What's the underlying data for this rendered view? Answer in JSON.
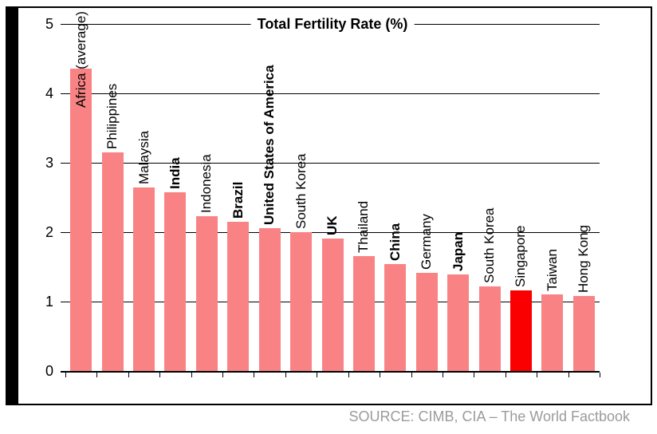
{
  "chart_data": {
    "type": "bar",
    "title": "Total Fertility Rate (%)",
    "categories": [
      "Africa (average)",
      "Philippines",
      "Malaysia",
      "India",
      "Indonesia",
      "Brazil",
      "United States of America",
      "South Korea",
      "UK",
      "Thailand",
      "China",
      "Germany",
      "Japan",
      "South Korea",
      "Singapore",
      "Taiwan",
      "Hong Kong"
    ],
    "values": [
      4.36,
      3.15,
      2.64,
      2.58,
      2.23,
      2.15,
      2.06,
      2.0,
      1.91,
      1.66,
      1.54,
      1.41,
      1.39,
      1.22,
      1.16,
      1.1,
      1.08
    ],
    "bold_flags": [
      false,
      false,
      false,
      true,
      false,
      true,
      true,
      false,
      true,
      false,
      true,
      false,
      true,
      false,
      false,
      false,
      false
    ],
    "highlight_index": 14,
    "highlighted_category": "Singapore",
    "xlabel": "",
    "ylabel": "",
    "ylim": [
      0,
      5
    ],
    "yticks": [
      0,
      1,
      2,
      3,
      4,
      5
    ],
    "grid": "horizontal",
    "legend": "none",
    "colors": {
      "bar": "#F98384",
      "highlight": "#FA0000",
      "axis": "#000000",
      "accent_strip": "#000000",
      "source_text": "#9B9B9B"
    }
  },
  "source_note": "SOURCE: CIMB, CIA – The World Factbook"
}
